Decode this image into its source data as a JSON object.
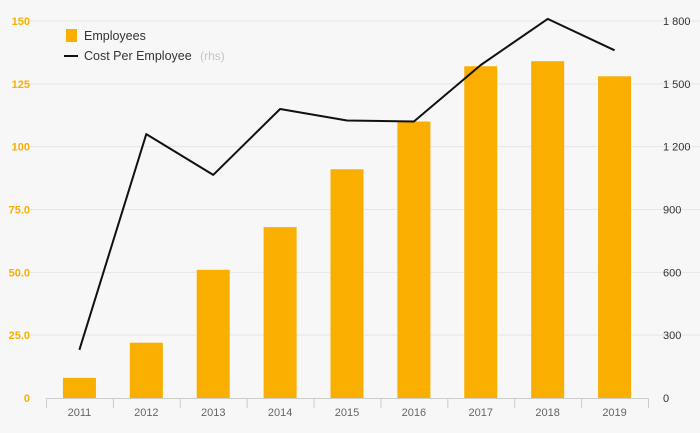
{
  "chart_data": {
    "type": "bar",
    "categories": [
      "2011",
      "2012",
      "2013",
      "2014",
      "2015",
      "2016",
      "2017",
      "2018",
      "2019"
    ],
    "series": [
      {
        "name": "Employees",
        "type": "bar",
        "axis": "left",
        "color": "#f9ae00",
        "values": [
          8,
          22,
          51,
          68,
          91,
          110,
          132,
          134,
          128
        ]
      },
      {
        "name": "Cost Per Employee",
        "type": "line",
        "axis": "right",
        "color": "#111111",
        "values": [
          230,
          1260,
          1065,
          1380,
          1325,
          1320,
          1590,
          1810,
          1660
        ]
      }
    ],
    "y_left": {
      "lim": [
        0,
        150
      ],
      "ticks": [
        0,
        25,
        50,
        75,
        100,
        125,
        150
      ],
      "tick_labels": [
        "0",
        "25.0",
        "50.0",
        "75.0",
        "100",
        "125",
        "150"
      ],
      "color": "#f9ae00"
    },
    "y_right": {
      "lim": [
        0,
        1800
      ],
      "ticks": [
        0,
        300,
        600,
        900,
        1200,
        1500,
        1800
      ],
      "tick_labels": [
        "0",
        "300",
        "600",
        "900",
        "1 200",
        "1 500",
        "1 800"
      ],
      "color": "#333333"
    },
    "grid": true,
    "legend_position": "top-left"
  },
  "legend": {
    "employees_label": "Employees",
    "cost_label": "Cost Per Employee",
    "cost_suffix": "(rhs)"
  }
}
